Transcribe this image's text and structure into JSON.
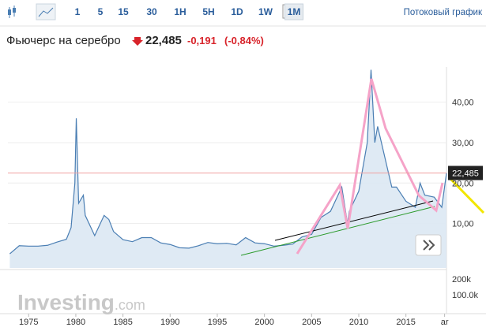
{
  "toolbar": {
    "intervals": [
      "1",
      "5",
      "15",
      "30",
      "1H",
      "5H",
      "1D",
      "1W",
      "1M"
    ],
    "active": 8,
    "stream": "Потоковый график"
  },
  "header": {
    "title": "Фьючерс на серебро",
    "price": "22,485",
    "change": "-0,191",
    "change_pct": "(-0,84%)"
  },
  "watermark": {
    "brand": "Investing",
    "suffix": ".com"
  },
  "chart_data": {
    "type": "area",
    "x": [
      1973,
      1974,
      1975,
      1976,
      1977,
      1978,
      1979,
      1979.5,
      1979.9,
      1980.05,
      1980.3,
      1980.8,
      1981,
      1982,
      1983,
      1983.5,
      1984,
      1985,
      1986,
      1987,
      1988,
      1989,
      1990,
      1991,
      1992,
      1993,
      1994,
      1995,
      1996,
      1997,
      1998,
      1999,
      2000,
      2001,
      2002,
      2003,
      2004,
      2005,
      2006,
      2007,
      2008.2,
      2008.8,
      2009,
      2010,
      2010.9,
      2011.3,
      2011.7,
      2012,
      2013,
      2013.5,
      2014,
      2015,
      2016,
      2016.5,
      2017,
      2018,
      2018.8,
      2019.3
    ],
    "values": [
      2.5,
      4.5,
      4.4,
      4.4,
      4.6,
      5.4,
      6.1,
      9,
      20,
      36,
      15,
      17,
      12,
      7,
      12,
      11,
      8,
      6,
      5.5,
      6.5,
      6.5,
      5.2,
      4.8,
      4.0,
      3.9,
      4.5,
      5.3,
      5.0,
      5.1,
      4.7,
      6.5,
      5.2,
      5.0,
      4.4,
      4.6,
      4.9,
      6.7,
      7.3,
      11.5,
      13,
      19,
      10,
      13,
      18,
      30,
      48,
      30,
      34,
      24,
      19,
      19,
      15.5,
      14,
      20,
      17,
      16.5,
      14,
      22.485
    ],
    "color": "#4a7eb3",
    "xlim": [
      1972.8,
      2019.3
    ],
    "ylim": [
      -1,
      48.7
    ],
    "xticks": [
      1975,
      1980,
      1985,
      1990,
      1995,
      2000,
      2005,
      2010,
      2015,
      {
        "value": 2019.1,
        "label": "ar"
      }
    ],
    "yticks": [
      {
        "value": 10,
        "label": "10,00"
      },
      {
        "value": 20,
        "label": "20,00"
      },
      {
        "value": 30,
        "label": "30,00"
      },
      {
        "value": 40,
        "label": "40,00"
      }
    ],
    "price_line": 22.485,
    "price_label": "22,485",
    "volume_ticks": [
      "200k",
      "100.0k"
    ]
  }
}
